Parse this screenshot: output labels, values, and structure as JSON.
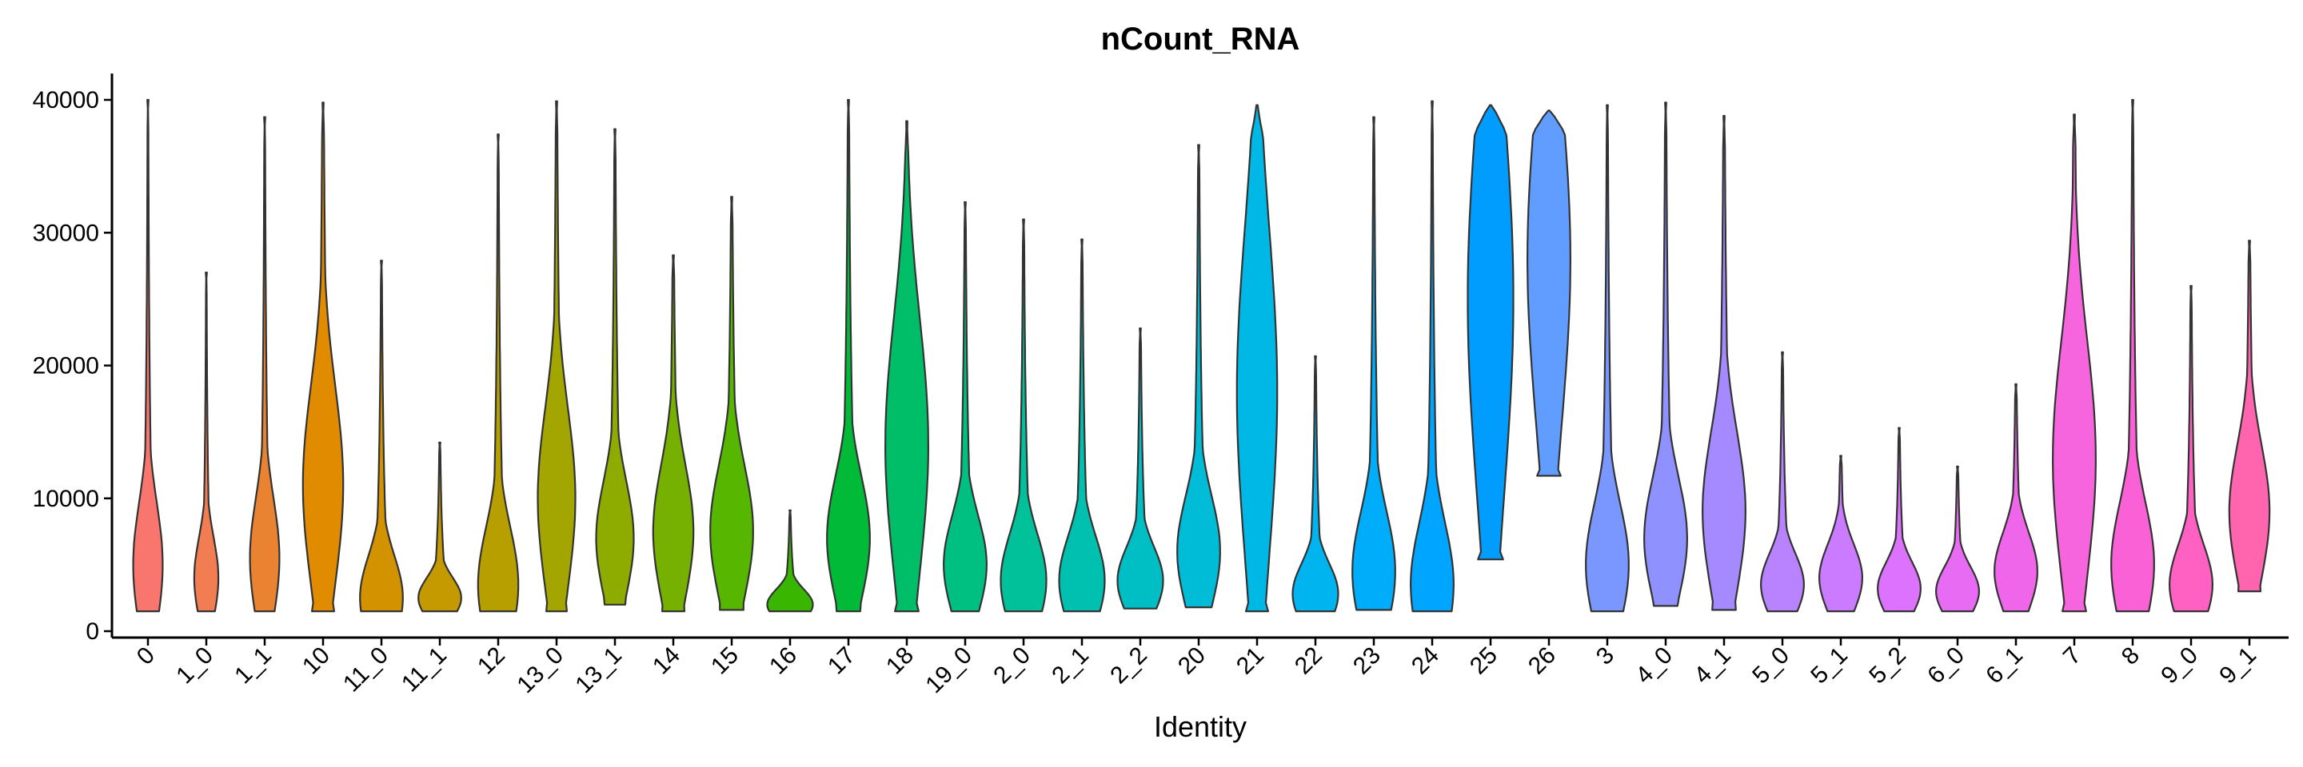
{
  "chart_data": {
    "type": "violin",
    "title": "nCount_RNA",
    "xlabel": "Identity",
    "ylabel": "",
    "ylim": [
      0,
      42000
    ],
    "yticks": [
      0,
      10000,
      20000,
      30000,
      40000
    ],
    "grid": false,
    "legend": "none",
    "categories": [
      "0",
      "1_0",
      "1_1",
      "10",
      "11_0",
      "11_1",
      "12",
      "13_0",
      "13_1",
      "14",
      "15",
      "16",
      "17",
      "18",
      "19_0",
      "2_0",
      "2_1",
      "2_2",
      "20",
      "21",
      "22",
      "23",
      "24",
      "25",
      "26",
      "3",
      "4_0",
      "4_1",
      "5_0",
      "5_1",
      "5_2",
      "6_0",
      "6_1",
      "7",
      "8",
      "9_0",
      "9_1"
    ],
    "colors": [
      "#F8766D",
      "#F27D53",
      "#EA8331",
      "#E08B00",
      "#D39200",
      "#C59900",
      "#B79F00",
      "#A3A500",
      "#8EAB00",
      "#76B000",
      "#57B700",
      "#39B600",
      "#00BA38",
      "#00BE67",
      "#00C081",
      "#00C19A",
      "#00C0AF",
      "#00BFC4",
      "#00BCD6",
      "#00B8E5",
      "#00B4F0",
      "#00ADFA",
      "#00A5FF",
      "#009DFF",
      "#619CFF",
      "#7997FF",
      "#8F91FF",
      "#A58AFF",
      "#B983FF",
      "#CB7BFF",
      "#DC72FD",
      "#E76BF3",
      "#F066EA",
      "#F664DE",
      "#FB61D7",
      "#FF61C3",
      "#FF64AF"
    ],
    "violins": [
      {
        "min": 1500,
        "max": 40000,
        "peak": 5000,
        "width": 0.55
      },
      {
        "min": 1500,
        "max": 27000,
        "peak": 4000,
        "width": 0.45
      },
      {
        "min": 1500,
        "max": 38700,
        "peak": 5500,
        "width": 0.55
      },
      {
        "min": 1500,
        "max": 39800,
        "peak": 11000,
        "width": 0.75
      },
      {
        "min": 1500,
        "max": 27900,
        "peak": 2500,
        "width": 0.8
      },
      {
        "min": 1500,
        "max": 14200,
        "peak": 2500,
        "width": 0.8
      },
      {
        "min": 1500,
        "max": 37400,
        "peak": 3500,
        "width": 0.75
      },
      {
        "min": 1500,
        "max": 39900,
        "peak": 10000,
        "width": 0.7
      },
      {
        "min": 2000,
        "max": 37800,
        "peak": 7000,
        "width": 0.7
      },
      {
        "min": 1500,
        "max": 28300,
        "peak": 7500,
        "width": 0.75
      },
      {
        "min": 1600,
        "max": 32700,
        "peak": 7500,
        "width": 0.8
      },
      {
        "min": 1500,
        "max": 9100,
        "peak": 2000,
        "width": 0.85
      },
      {
        "min": 1500,
        "max": 40000,
        "peak": 7000,
        "width": 0.8
      },
      {
        "min": 1500,
        "max": 38400,
        "peak": 14000,
        "width": 0.8
      },
      {
        "min": 1500,
        "max": 32300,
        "peak": 5000,
        "width": 0.8
      },
      {
        "min": 1500,
        "max": 31000,
        "peak": 3800,
        "width": 0.85
      },
      {
        "min": 1500,
        "max": 29500,
        "peak": 3800,
        "width": 0.85
      },
      {
        "min": 1700,
        "max": 22800,
        "peak": 3800,
        "width": 0.85
      },
      {
        "min": 1800,
        "max": 36600,
        "peak": 6000,
        "width": 0.8
      },
      {
        "min": 1500,
        "max": 39600,
        "peak": 18000,
        "width": 0.75
      },
      {
        "min": 1500,
        "max": 20700,
        "peak": 2800,
        "width": 0.85
      },
      {
        "min": 1600,
        "max": 38700,
        "peak": 4500,
        "width": 0.8
      },
      {
        "min": 1500,
        "max": 39900,
        "peak": 3500,
        "width": 0.8
      },
      {
        "min": 5400,
        "max": 39600,
        "peak": 25000,
        "width": 0.85
      },
      {
        "min": 11700,
        "max": 39200,
        "peak": 28000,
        "width": 0.8
      },
      {
        "min": 1500,
        "max": 39600,
        "peak": 5000,
        "width": 0.8
      },
      {
        "min": 1900,
        "max": 39800,
        "peak": 7000,
        "width": 0.8
      },
      {
        "min": 1600,
        "max": 38800,
        "peak": 9000,
        "width": 0.8
      },
      {
        "min": 1500,
        "max": 21000,
        "peak": 3500,
        "width": 0.8
      },
      {
        "min": 1500,
        "max": 13200,
        "peak": 4000,
        "width": 0.8
      },
      {
        "min": 1500,
        "max": 15300,
        "peak": 3200,
        "width": 0.8
      },
      {
        "min": 1500,
        "max": 12400,
        "peak": 3000,
        "width": 0.8
      },
      {
        "min": 1500,
        "max": 18600,
        "peak": 4500,
        "width": 0.8
      },
      {
        "min": 1500,
        "max": 38900,
        "peak": 13000,
        "width": 0.8
      },
      {
        "min": 1500,
        "max": 40000,
        "peak": 5000,
        "width": 0.8
      },
      {
        "min": 1500,
        "max": 26000,
        "peak": 3500,
        "width": 0.8
      },
      {
        "min": 3000,
        "max": 29400,
        "peak": 9000,
        "width": 0.75
      }
    ]
  }
}
